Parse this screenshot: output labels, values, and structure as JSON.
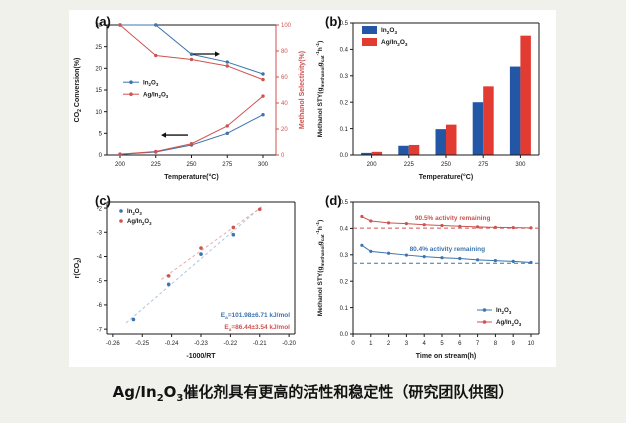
{
  "ui": {
    "background": "#f1f1ec",
    "card_background": "#ffffff",
    "caption": "Ag/In_{2}O_{3}催化剂具有更高的活性和稳定性（研究团队供图）"
  },
  "colors": {
    "blue": "#3b74ae",
    "red": "#cd5350",
    "bar_blue": "#2456a6",
    "bar_red": "#e23b31",
    "fit_blue": "#a9c7e2",
    "fit_red": "#e8aca8",
    "axis": "#1a1a1a"
  },
  "chart_data": [
    {
      "id": "a",
      "label": "(a)",
      "type": "line-dual-axis",
      "xlabel": "Temperature(°C)",
      "ylabel_left": "CO_{2} Conversion(%)",
      "ylabel_right": "Methanol Selectivity(%)",
      "categories": [
        200,
        225,
        250,
        275,
        300
      ],
      "ylim_left": [
        0,
        30
      ],
      "yticks_left": [
        "0",
        "5",
        "10",
        "15",
        "20",
        "25",
        "30"
      ],
      "ylim_right": [
        0,
        100
      ],
      "yticks_right": [
        "0",
        "20",
        "40",
        "60",
        "80",
        "100"
      ],
      "legend": [
        "In_{2}O_{3}",
        "Ag/In_{2}O_{3}"
      ],
      "series": [
        {
          "name": "In_{2}O_{3} selectivity",
          "axis": "right",
          "color": "blue",
          "values": [
            100,
            100,
            77.5,
            71.5,
            62.3
          ]
        },
        {
          "name": "Ag/In_{2}O_{3} selectivity",
          "axis": "right",
          "color": "red",
          "values": [
            100,
            76.5,
            73.5,
            68.5,
            58
          ]
        },
        {
          "name": "In_{2}O_{3} conversion",
          "axis": "left",
          "color": "blue",
          "values": [
            0.15,
            0.7,
            2.3,
            5.0,
            9.3
          ]
        },
        {
          "name": "Ag/In_{2}O_{3} conversion",
          "axis": "left",
          "color": "red",
          "values": [
            0.2,
            0.8,
            2.6,
            6.7,
            13.6
          ]
        }
      ]
    },
    {
      "id": "b",
      "label": "(b)",
      "type": "bar",
      "xlabel": "Temperature(°C)",
      "ylabel": "Methanol STY(g_{methanol}g_{cat}^{-1}h^{-1})",
      "categories": [
        200,
        225,
        250,
        275,
        300
      ],
      "ylim": [
        0,
        0.5
      ],
      "yticks": [
        "0.0",
        "0.1",
        "0.2",
        "0.3",
        "0.4",
        "0.5"
      ],
      "series": [
        {
          "name": "In_{2}O_{3}",
          "color": "bar_blue",
          "values": [
            0.008,
            0.035,
            0.098,
            0.2,
            0.335
          ]
        },
        {
          "name": "Ag/In_{2}O_{3}",
          "color": "bar_red",
          "values": [
            0.012,
            0.038,
            0.115,
            0.26,
            0.452
          ]
        }
      ]
    },
    {
      "id": "c",
      "label": "(c)",
      "type": "scatter",
      "xlabel": "-1000/RT",
      "ylabel": "r(CO_{2})",
      "xlim": [
        -0.262,
        -0.198
      ],
      "xticks": [
        "-0.26",
        "-0.25",
        "-0.24",
        "-0.23",
        "-0.22",
        "-0.21",
        "-0.20"
      ],
      "ylim": [
        -7.2,
        -1.75
      ],
      "yticks": [
        "-7",
        "-6",
        "-5",
        "-4",
        "-3",
        "-2"
      ],
      "series": [
        {
          "name": "In_{2}O_{3}",
          "color": "blue",
          "fit_color": "fit_blue",
          "fit_range": [
            -0.2555,
            -0.2095
          ],
          "points": [
            [
              -0.253,
              -6.6
            ],
            [
              -0.241,
              -5.15
            ],
            [
              -0.23,
              -3.9
            ],
            [
              -0.219,
              -3.1
            ]
          ]
        },
        {
          "name": "Ag/In_{2}O_{3}",
          "color": "red",
          "fit_color": "fit_red",
          "fit_range": [
            -0.2435,
            -0.2085
          ],
          "points": [
            [
              -0.241,
              -4.8
            ],
            [
              -0.23,
              -3.65
            ],
            [
              -0.219,
              -2.8
            ],
            [
              -0.21,
              -2.05
            ]
          ]
        }
      ],
      "annotations": [
        {
          "text": "E_{a}=101.98±6.71 kJ/mol",
          "color": "blue"
        },
        {
          "text": "E_{a}=86.44±3.54 kJ/mol",
          "color": "red"
        }
      ]
    },
    {
      "id": "d",
      "label": "(d)",
      "type": "line",
      "xlabel": "Time on stream(h)",
      "ylabel": "Methanol STY(g_{methanol}g_{cat}^{-1}h^{-1})",
      "xlim": [
        0,
        10.45
      ],
      "xticks": [
        "0",
        "1",
        "2",
        "3",
        "4",
        "5",
        "6",
        "7",
        "8",
        "9",
        "10"
      ],
      "ylim": [
        0,
        0.5
      ],
      "yticks": [
        "0.0",
        "0.1",
        "0.2",
        "0.3",
        "0.4",
        "0.5"
      ],
      "x": [
        0.5,
        1,
        2,
        3,
        4,
        5,
        6,
        7,
        8,
        9,
        10
      ],
      "series": [
        {
          "name": "In_{2}O_{3}",
          "color": "blue",
          "baseline": 0.268,
          "values": [
            0.336,
            0.313,
            0.306,
            0.299,
            0.293,
            0.289,
            0.286,
            0.281,
            0.278,
            0.275,
            0.271
          ]
        },
        {
          "name": "Ag/In_{2}O_{3}",
          "color": "red",
          "baseline": 0.401,
          "values": [
            0.445,
            0.428,
            0.421,
            0.418,
            0.414,
            0.411,
            0.408,
            0.406,
            0.404,
            0.403,
            0.402
          ]
        }
      ],
      "annotations": [
        {
          "text": "90.5% activity remaining",
          "color": "red",
          "x": 5.6,
          "y": 0.432
        },
        {
          "text": "80.4% activity remaining",
          "color": "blue",
          "x": 5.3,
          "y": 0.315
        }
      ],
      "legend": [
        "In_{2}O_{3}",
        "Ag/In_{2}O_{3}"
      ]
    }
  ]
}
